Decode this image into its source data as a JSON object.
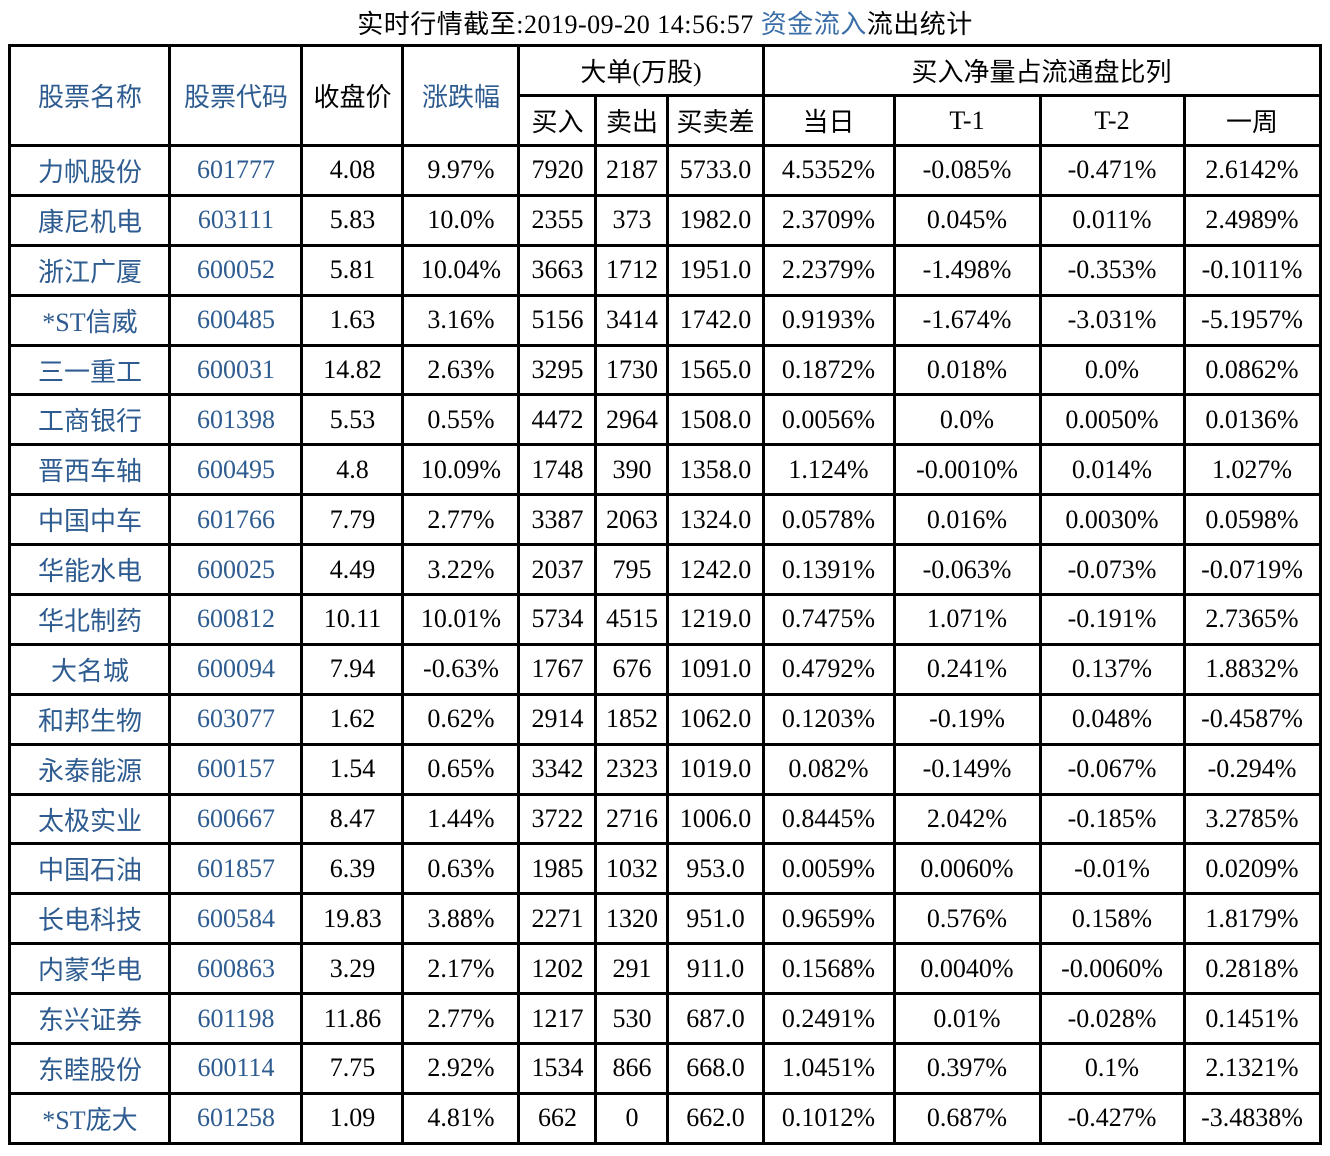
{
  "title": {
    "prefix": "实时行情截至:2019-09-20 14:56:57 ",
    "highlight": "资金流入",
    "suffix": "流出统计"
  },
  "colors": {
    "accent_blue_table": "#2e5c90",
    "accent_blue_title": "#3a6ea8",
    "border": "#000000",
    "text": "#000000",
    "background": "#ffffff"
  },
  "table": {
    "headers": {
      "stock_name": "股票名称",
      "stock_code": "股票代码",
      "close_price": "收盘价",
      "change_pct": "涨跌幅",
      "large_orders_group": "大单(万股)",
      "buy": "买入",
      "sell": "卖出",
      "buy_sell_diff": "买卖差",
      "net_buy_ratio_group": "买入净量占流通盘比列",
      "today": "当日",
      "t_minus_1": "T-1",
      "t_minus_2": "T-2",
      "one_week": "一周"
    },
    "rows": [
      [
        "力帆股份",
        "601777",
        "4.08",
        "9.97%",
        "7920",
        "2187",
        "5733.0",
        "4.5352%",
        "-0.085%",
        "-0.471%",
        "2.6142%"
      ],
      [
        "康尼机电",
        "603111",
        "5.83",
        "10.0%",
        "2355",
        "373",
        "1982.0",
        "2.3709%",
        "0.045%",
        "0.011%",
        "2.4989%"
      ],
      [
        "浙江广厦",
        "600052",
        "5.81",
        "10.04%",
        "3663",
        "1712",
        "1951.0",
        "2.2379%",
        "-1.498%",
        "-0.353%",
        "-0.1011%"
      ],
      [
        "*ST信威",
        "600485",
        "1.63",
        "3.16%",
        "5156",
        "3414",
        "1742.0",
        "0.9193%",
        "-1.674%",
        "-3.031%",
        "-5.1957%"
      ],
      [
        "三一重工",
        "600031",
        "14.82",
        "2.63%",
        "3295",
        "1730",
        "1565.0",
        "0.1872%",
        "0.018%",
        "0.0%",
        "0.0862%"
      ],
      [
        "工商银行",
        "601398",
        "5.53",
        "0.55%",
        "4472",
        "2964",
        "1508.0",
        "0.0056%",
        "0.0%",
        "0.0050%",
        "0.0136%"
      ],
      [
        "晋西车轴",
        "600495",
        "4.8",
        "10.09%",
        "1748",
        "390",
        "1358.0",
        "1.124%",
        "-0.0010%",
        "0.014%",
        "1.027%"
      ],
      [
        "中国中车",
        "601766",
        "7.79",
        "2.77%",
        "3387",
        "2063",
        "1324.0",
        "0.0578%",
        "0.016%",
        "0.0030%",
        "0.0598%"
      ],
      [
        "华能水电",
        "600025",
        "4.49",
        "3.22%",
        "2037",
        "795",
        "1242.0",
        "0.1391%",
        "-0.063%",
        "-0.073%",
        "-0.0719%"
      ],
      [
        "华北制药",
        "600812",
        "10.11",
        "10.01%",
        "5734",
        "4515",
        "1219.0",
        "0.7475%",
        "1.071%",
        "-0.191%",
        "2.7365%"
      ],
      [
        "大名城",
        "600094",
        "7.94",
        "-0.63%",
        "1767",
        "676",
        "1091.0",
        "0.4792%",
        "0.241%",
        "0.137%",
        "1.8832%"
      ],
      [
        "和邦生物",
        "603077",
        "1.62",
        "0.62%",
        "2914",
        "1852",
        "1062.0",
        "0.1203%",
        "-0.19%",
        "0.048%",
        "-0.4587%"
      ],
      [
        "永泰能源",
        "600157",
        "1.54",
        "0.65%",
        "3342",
        "2323",
        "1019.0",
        "0.082%",
        "-0.149%",
        "-0.067%",
        "-0.294%"
      ],
      [
        "太极实业",
        "600667",
        "8.47",
        "1.44%",
        "3722",
        "2716",
        "1006.0",
        "0.8445%",
        "2.042%",
        "-0.185%",
        "3.2785%"
      ],
      [
        "中国石油",
        "601857",
        "6.39",
        "0.63%",
        "1985",
        "1032",
        "953.0",
        "0.0059%",
        "0.0060%",
        "-0.01%",
        "0.0209%"
      ],
      [
        "长电科技",
        "600584",
        "19.83",
        "3.88%",
        "2271",
        "1320",
        "951.0",
        "0.9659%",
        "0.576%",
        "0.158%",
        "1.8179%"
      ],
      [
        "内蒙华电",
        "600863",
        "3.29",
        "2.17%",
        "1202",
        "291",
        "911.0",
        "0.1568%",
        "0.0040%",
        "-0.0060%",
        "0.2818%"
      ],
      [
        "东兴证券",
        "601198",
        "11.86",
        "2.77%",
        "1217",
        "530",
        "687.0",
        "0.2491%",
        "0.01%",
        "-0.028%",
        "0.1451%"
      ],
      [
        "东睦股份",
        "600114",
        "7.75",
        "2.92%",
        "1534",
        "866",
        "668.0",
        "1.0451%",
        "0.397%",
        "0.1%",
        "2.1321%"
      ],
      [
        "*ST庞大",
        "601258",
        "1.09",
        "4.81%",
        "662",
        "0",
        "662.0",
        "0.1012%",
        "0.687%",
        "-0.427%",
        "-3.4838%"
      ]
    ]
  }
}
